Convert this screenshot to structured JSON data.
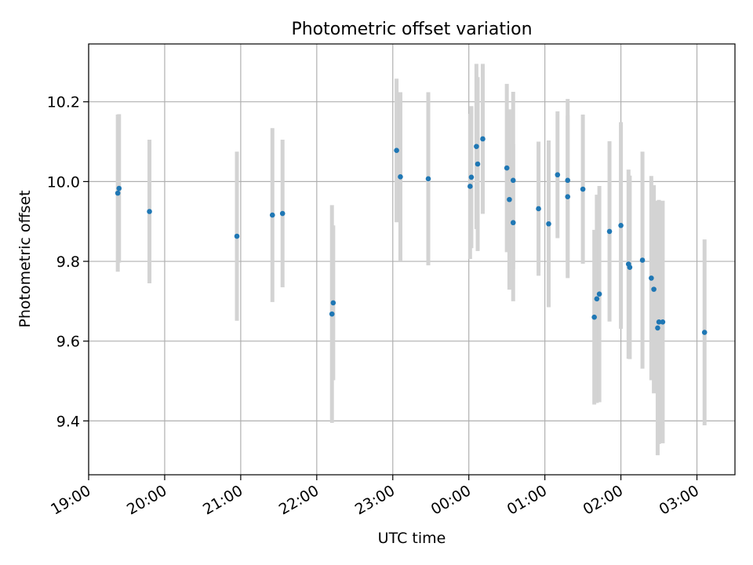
{
  "chart_data": {
    "type": "scatter",
    "title": "Photometric offset variation",
    "xlabel": "UTC time",
    "ylabel": "Photometric offset",
    "x_tick_labels": [
      "19:00",
      "20:00",
      "21:00",
      "22:00",
      "23:00",
      "00:00",
      "01:00",
      "02:00",
      "03:00"
    ],
    "y_tick_labels": [
      "9.4",
      "9.6",
      "9.8",
      "10.0",
      "10.2"
    ],
    "y_ticks": [
      9.4,
      9.6,
      9.8,
      10.0,
      10.2
    ],
    "xlim": [
      "19:00",
      "03:30"
    ],
    "ylim": [
      9.265,
      10.345
    ],
    "grid": true,
    "marker_color": "#1f77b4",
    "errorbar_color": "#d3d3d3",
    "points": [
      {
        "x": "19:23",
        "y": 9.971,
        "err": 0.197
      },
      {
        "x": "19:24",
        "y": 9.983,
        "err": 0.186
      },
      {
        "x": "19:48",
        "y": 9.925,
        "err": 0.18
      },
      {
        "x": "20:57",
        "y": 9.863,
        "err": 0.212
      },
      {
        "x": "21:25",
        "y": 9.916,
        "err": 0.218
      },
      {
        "x": "21:33",
        "y": 9.92,
        "err": 0.185
      },
      {
        "x": "22:12",
        "y": 9.668,
        "err": 0.273
      },
      {
        "x": "22:13",
        "y": 9.696,
        "err": 0.194
      },
      {
        "x": "23:03",
        "y": 10.078,
        "err": 0.18
      },
      {
        "x": "23:06",
        "y": 10.012,
        "err": 0.212
      },
      {
        "x": "23:28",
        "y": 10.007,
        "err": 0.217
      },
      {
        "x": "00:01",
        "y": 9.988,
        "err": 0.182
      },
      {
        "x": "00:02",
        "y": 10.011,
        "err": 0.178
      },
      {
        "x": "00:06",
        "y": 10.088,
        "err": 0.207
      },
      {
        "x": "00:07",
        "y": 10.044,
        "err": 0.218
      },
      {
        "x": "00:11",
        "y": 10.107,
        "err": 0.188
      },
      {
        "x": "00:30",
        "y": 10.034,
        "err": 0.211
      },
      {
        "x": "00:32",
        "y": 9.955,
        "err": 0.226
      },
      {
        "x": "00:35",
        "y": 9.897,
        "err": 0.197
      },
      {
        "x": "00:35",
        "y": 10.003,
        "err": 0.222
      },
      {
        "x": "00:55",
        "y": 9.932,
        "err": 0.168
      },
      {
        "x": "01:03",
        "y": 9.894,
        "err": 0.209
      },
      {
        "x": "01:10",
        "y": 10.017,
        "err": 0.159
      },
      {
        "x": "01:18",
        "y": 9.962,
        "err": 0.204
      },
      {
        "x": "01:18",
        "y": 10.003,
        "err": 0.204
      },
      {
        "x": "01:30",
        "y": 9.981,
        "err": 0.187
      },
      {
        "x": "01:39",
        "y": 9.66,
        "err": 0.219
      },
      {
        "x": "01:41",
        "y": 9.706,
        "err": 0.261
      },
      {
        "x": "01:43",
        "y": 9.718,
        "err": 0.271
      },
      {
        "x": "01:51",
        "y": 9.875,
        "err": 0.226
      },
      {
        "x": "02:00",
        "y": 9.89,
        "err": 0.259
      },
      {
        "x": "02:06",
        "y": 9.793,
        "err": 0.237
      },
      {
        "x": "02:07",
        "y": 9.785,
        "err": 0.23
      },
      {
        "x": "02:17",
        "y": 9.803,
        "err": 0.272
      },
      {
        "x": "02:24",
        "y": 9.758,
        "err": 0.256
      },
      {
        "x": "02:26",
        "y": 9.73,
        "err": 0.261
      },
      {
        "x": "02:29",
        "y": 9.633,
        "err": 0.319
      },
      {
        "x": "02:30",
        "y": 9.648,
        "err": 0.306
      },
      {
        "x": "02:33",
        "y": 9.648,
        "err": 0.304
      },
      {
        "x": "03:06",
        "y": 9.622,
        "err": 0.233
      }
    ]
  }
}
